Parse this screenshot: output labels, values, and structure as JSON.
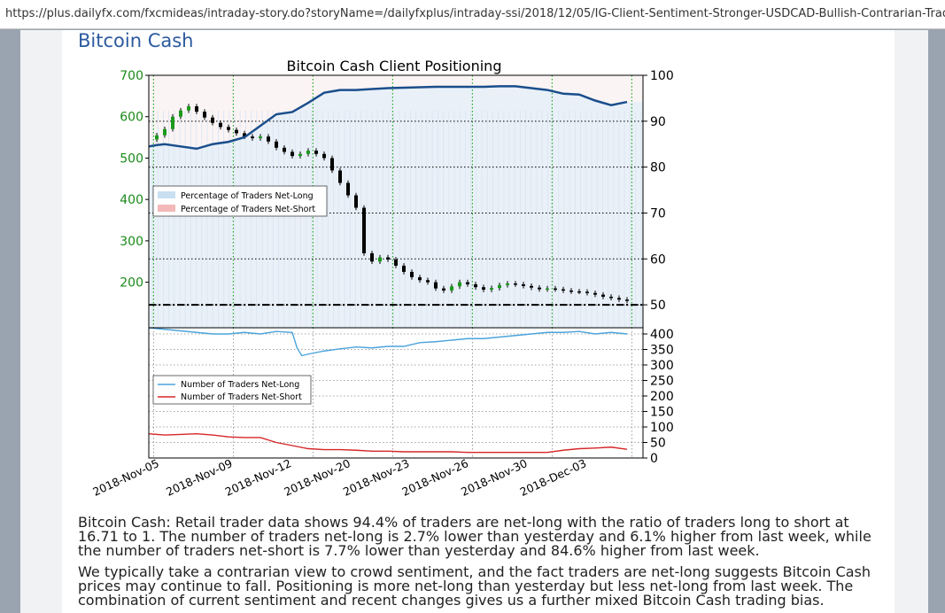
{
  "browser": {
    "url": "https://plus.dailyfx.com/fxcmideas/intraday-story.do?storyName=/dailyfxplus/intraday-ssi/2018/12/05/IG-Client-Sentiment-Stronger-USDCAD-Bullish-Contrarian-Trading..."
  },
  "section": {
    "title": "Bitcoin Cash"
  },
  "chart_data": {
    "type": "line",
    "title": "Bitcoin Cash Client Positioning",
    "x_dates": [
      "2018-Nov-05",
      "2018-Nov-09",
      "2018-Nov-12",
      "2018-Nov-20",
      "2018-Nov-23",
      "2018-Nov-26",
      "2018-Nov-30",
      "2018-Dec-03"
    ],
    "top_panel": {
      "left_axis": {
        "ticks": [
          "700",
          "600",
          "500",
          "400",
          "300",
          "200"
        ],
        "ylim": [
          90,
          700
        ],
        "color": "#1a8a1a"
      },
      "right_axis": {
        "ticks": [
          "100",
          "90",
          "80",
          "70",
          "60",
          "50"
        ],
        "ylim": [
          45,
          100
        ]
      },
      "legend": {
        "position": "center-left",
        "entries": [
          "Percentage of Traders Net-Long",
          "Percentage of Traders Net-Short"
        ]
      },
      "net_long_pct": {
        "color": "#1a4e8c",
        "x": [
          0,
          0.5,
          1,
          2,
          3,
          4,
          5,
          6,
          7,
          8,
          9,
          10,
          11,
          12,
          13,
          14,
          15,
          16,
          17,
          18,
          19,
          20,
          21,
          22,
          23,
          24,
          25,
          26,
          27,
          28,
          29,
          30
        ],
        "values": [
          84.5,
          84.8,
          85,
          84.5,
          84,
          85,
          85.5,
          86.5,
          89,
          91.5,
          92,
          94,
          96.2,
          96.8,
          96.8,
          97,
          97.2,
          97.3,
          97.4,
          97.5,
          97.5,
          97.5,
          97.5,
          97.6,
          97.6,
          97.2,
          96.8,
          96,
          95.8,
          94.5,
          93.5,
          94.2
        ]
      },
      "price": {
        "x": [
          0,
          0.5,
          1,
          1.5,
          2,
          2.5,
          3,
          3.5,
          4,
          4.5,
          5,
          5.5,
          6,
          6.5,
          7,
          7.5,
          8,
          8.5,
          9,
          9.5,
          10,
          10.5,
          11,
          11.5,
          12,
          12.5,
          13,
          13.5,
          14,
          14.5,
          15,
          15.5,
          16,
          16.5,
          17,
          17.5,
          18,
          18.5,
          19,
          19.5,
          20,
          20.5,
          21,
          21.5,
          22,
          22.5,
          23,
          23.5,
          24,
          24.5,
          25,
          25.5,
          26,
          26.5,
          27,
          27.5,
          28,
          28.5,
          29,
          29.5,
          30
        ],
        "values": [
          545,
          555,
          570,
          600,
          615,
          625,
          612,
          598,
          585,
          575,
          568,
          560,
          552,
          548,
          552,
          540,
          525,
          515,
          505,
          510,
          518,
          510,
          500,
          470,
          440,
          410,
          380,
          270,
          250,
          260,
          255,
          240,
          225,
          212,
          205,
          200,
          185,
          180,
          190,
          200,
          195,
          188,
          182,
          186,
          193,
          197,
          195,
          191,
          187,
          183,
          185,
          183,
          180,
          178,
          177,
          174,
          170,
          165,
          162,
          158,
          155
        ]
      },
      "dashed_line_pct": 50
    },
    "bottom_panel": {
      "right_axis": {
        "ticks": [
          "400",
          "350",
          "300",
          "250",
          "200",
          "150",
          "100",
          "50",
          "0"
        ],
        "ylim": [
          0,
          420
        ]
      },
      "legend": {
        "position": "center-left",
        "entries": [
          "Number of Traders Net-Long",
          "Number of Traders Net-Short"
        ]
      },
      "series": [
        {
          "name": "Number of Traders Net-Long",
          "color": "#4ba3dc",
          "x": [
            0,
            1,
            2,
            3,
            4,
            5,
            6,
            7,
            8,
            9,
            9.3,
            9.6,
            10,
            11,
            12,
            13,
            14,
            15,
            16,
            17,
            18,
            19,
            20,
            21,
            22,
            23,
            24,
            25,
            26,
            27,
            28,
            29,
            30
          ],
          "values": [
            420,
            415,
            410,
            405,
            400,
            400,
            405,
            400,
            408,
            405,
            355,
            330,
            335,
            345,
            352,
            358,
            355,
            360,
            360,
            372,
            375,
            380,
            385,
            385,
            390,
            395,
            400,
            405,
            405,
            408,
            400,
            405,
            400
          ]
        },
        {
          "name": "Number of Traders Net-Short",
          "color": "#d62728",
          "x": [
            0,
            1,
            2,
            3,
            4,
            5,
            6,
            7,
            8,
            9,
            10,
            11,
            12,
            13,
            14,
            15,
            16,
            17,
            18,
            19,
            20,
            21,
            22,
            23,
            24,
            25,
            26,
            27,
            28,
            29,
            30
          ],
          "values": [
            78,
            74,
            76,
            78,
            74,
            68,
            66,
            66,
            50,
            40,
            30,
            27,
            27,
            25,
            22,
            22,
            20,
            20,
            20,
            20,
            18,
            18,
            18,
            18,
            18,
            18,
            25,
            30,
            32,
            35,
            28
          ]
        }
      ]
    }
  },
  "text": {
    "p1": "Bitcoin Cash: Retail trader data shows 94.4% of traders are net-long with the ratio of traders long to short at 16.71 to 1. The number of traders net-long is 2.7% lower than yesterday and 6.1% higher from last week, while the number of traders net-short is 7.7% lower than yesterday and 84.6% higher from last week.",
    "p2": "We typically take a contrarian view to crowd sentiment, and the fact traders are net-long suggests Bitcoin Cash prices may continue to fall. Positioning is more net-long than yesterday but less net-long from last week. The combination of current sentiment and recent changes gives us a further mixed Bitcoin Cash trading bias."
  }
}
